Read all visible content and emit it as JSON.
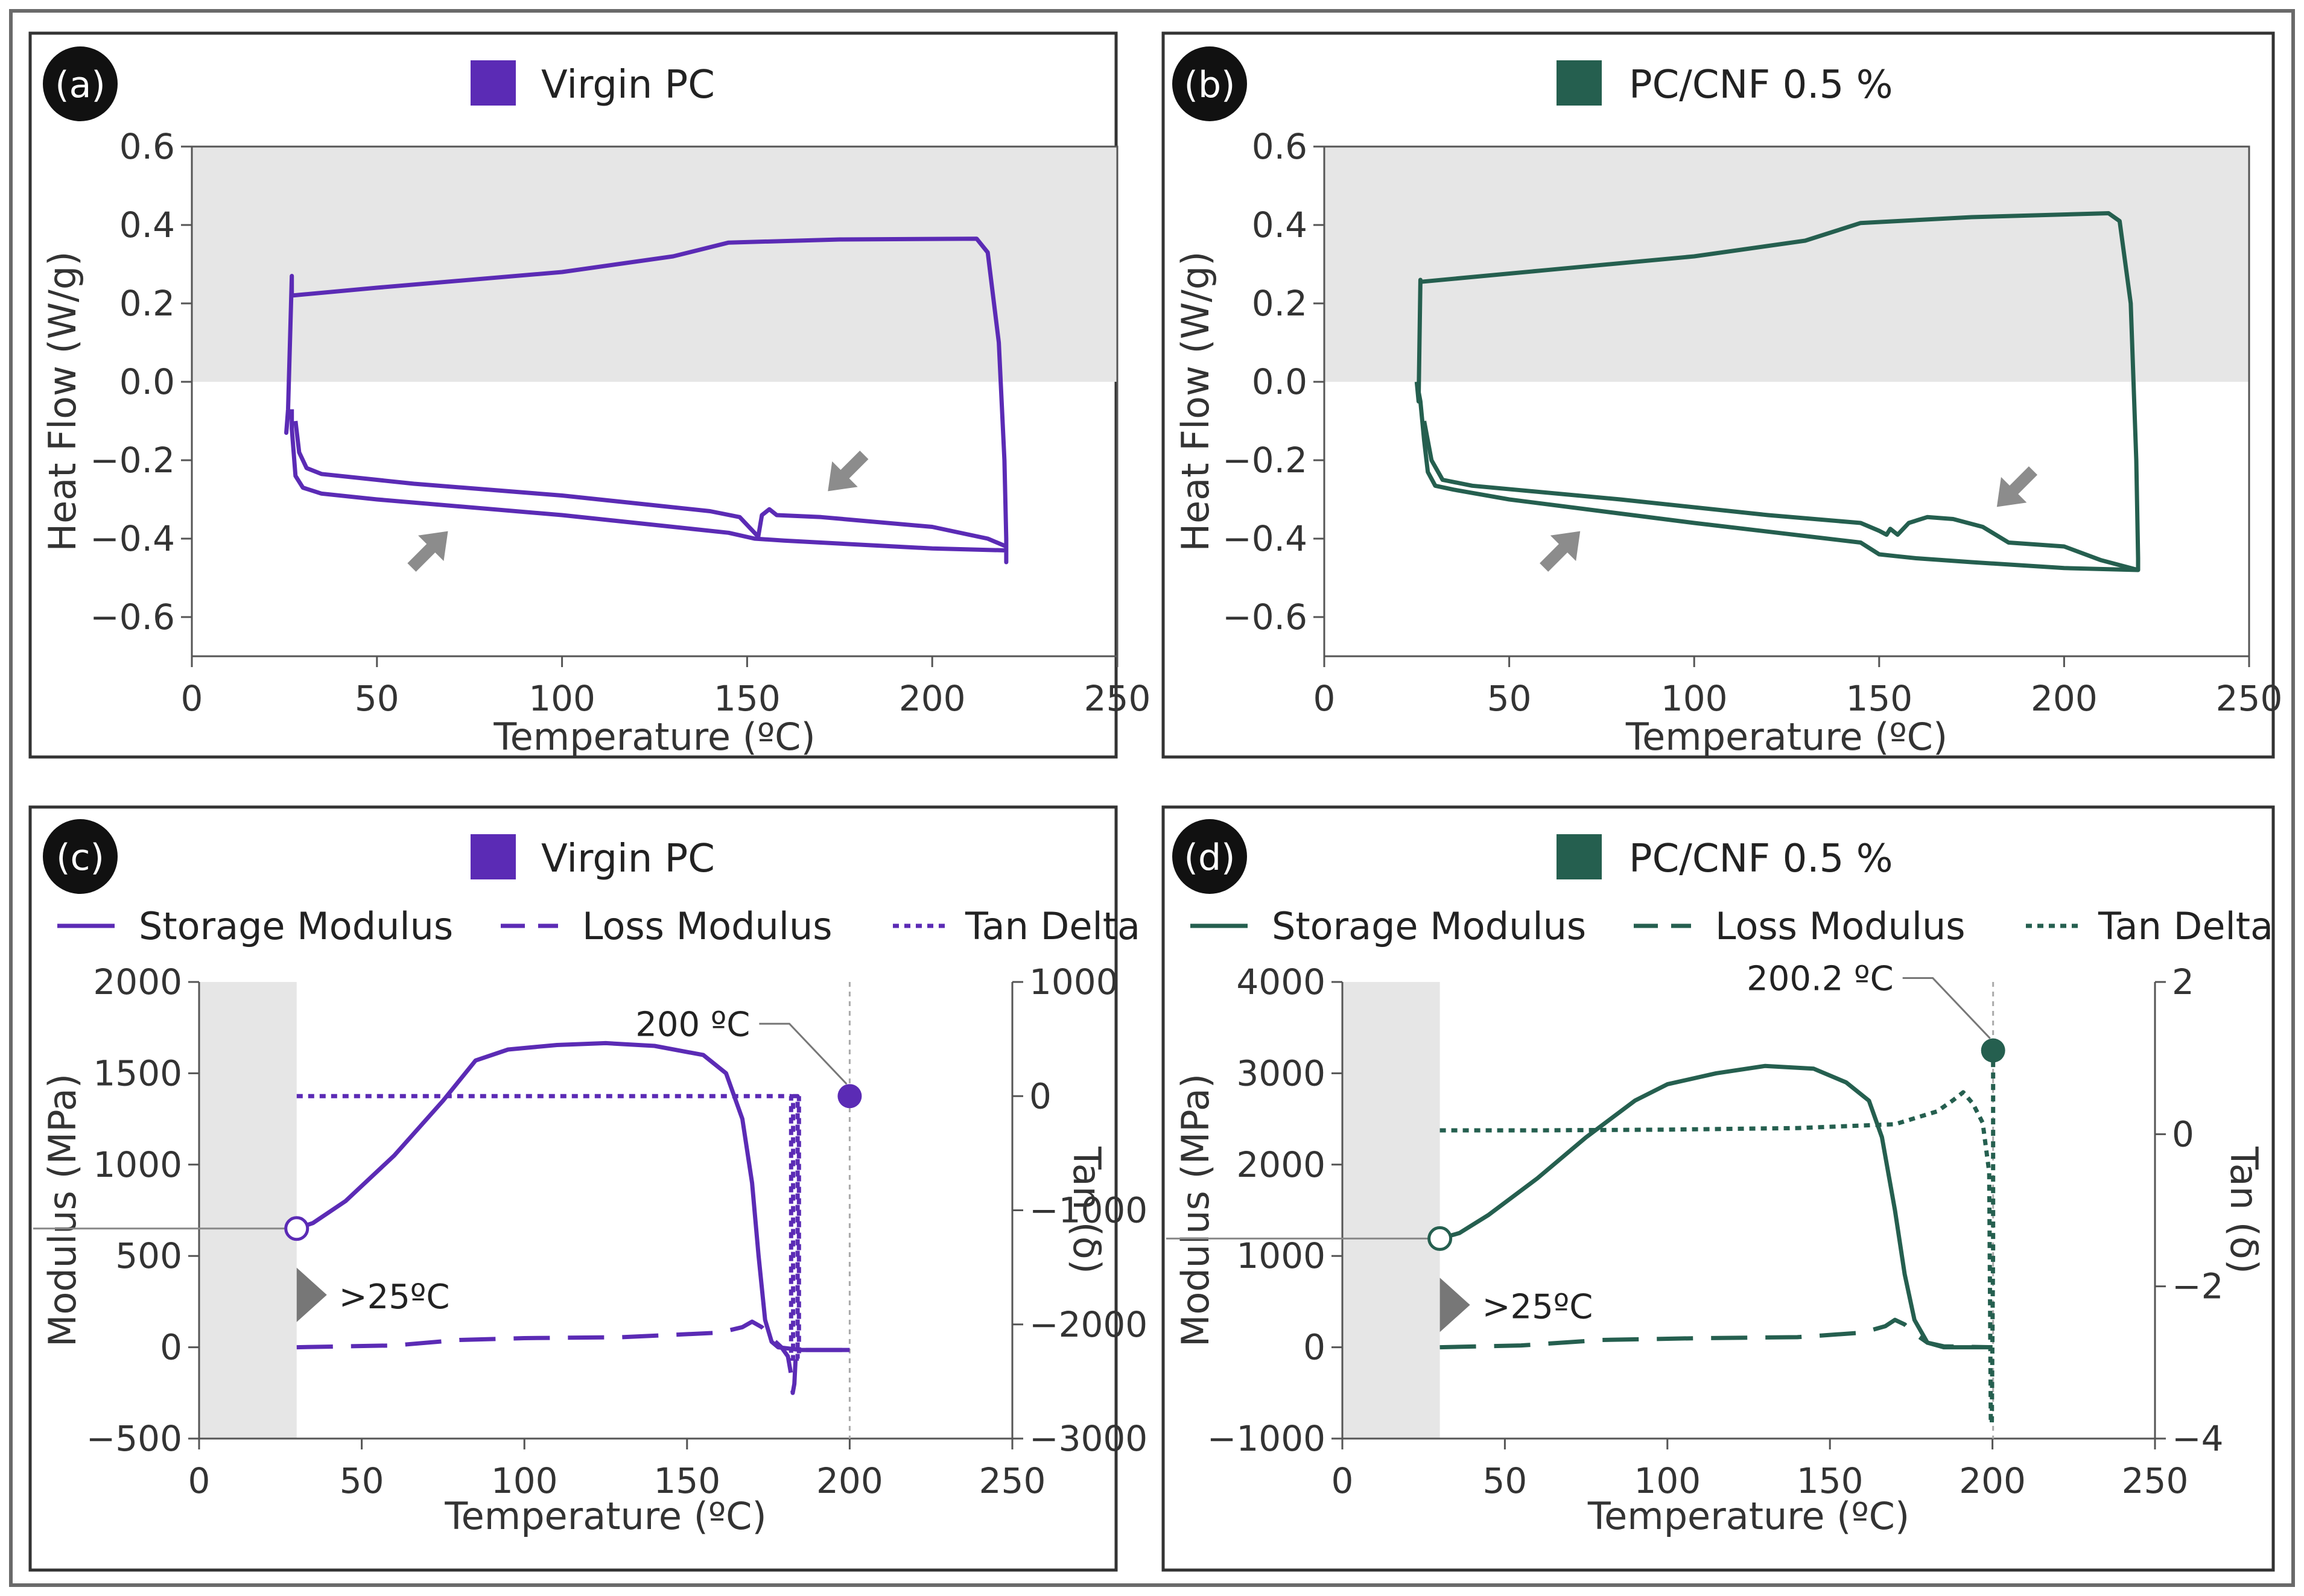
{
  "colors": {
    "purple": "#5b2bb5",
    "green": "#255f4f",
    "arrow": "#8c8c8c",
    "shade": "#e6e6e6",
    "frame": "#6a6a6a"
  },
  "chart_data": [
    {
      "panel": "a",
      "panel_label": "(a)",
      "type": "line",
      "legend": "Virgin PC",
      "color_key": "purple",
      "xlabel": "Temperature (ºC)",
      "ylabel": "Heat Flow (W/g)",
      "xlim": [
        0,
        250
      ],
      "ylim": [
        -0.7,
        0.6
      ],
      "xticks": [
        0,
        50,
        100,
        150,
        200,
        250
      ],
      "yticks": [
        -0.6,
        -0.4,
        -0.2,
        0.0,
        0.2,
        0.4,
        0.6
      ],
      "xtick_labels": [
        "0",
        "50",
        "100",
        "150",
        "200",
        "250"
      ],
      "ytick_labels": [
        "−0.6",
        "−0.4",
        "−0.2",
        "0.0",
        "0.2",
        "0.4",
        "0.6"
      ],
      "shaded_y": [
        0,
        0.6
      ],
      "curves": [
        {
          "name": "loop",
          "points": [
            [
              26,
              -0.08
            ],
            [
              25.5,
              -0.13
            ],
            [
              26,
              -0.07
            ],
            [
              27,
              0.27
            ],
            [
              27,
              0.22
            ],
            [
              50,
              0.24
            ],
            [
              100,
              0.28
            ],
            [
              130,
              0.32
            ],
            [
              145,
              0.355
            ],
            [
              175,
              0.363
            ],
            [
              212,
              0.365
            ],
            [
              215,
              0.33
            ],
            [
              218,
              0.1
            ],
            [
              219.5,
              -0.2
            ],
            [
              220,
              -0.4
            ],
            [
              220,
              -0.46
            ],
            [
              220,
              -0.43
            ],
            [
              200,
              -0.425
            ],
            [
              160,
              -0.405
            ],
            [
              152,
              -0.4
            ],
            [
              145,
              -0.385
            ],
            [
              100,
              -0.34
            ],
            [
              50,
              -0.3
            ],
            [
              35,
              -0.285
            ],
            [
              30,
              -0.27
            ],
            [
              28,
              -0.24
            ],
            [
              27,
              -0.12
            ],
            [
              27,
              -0.07
            ]
          ]
        },
        {
          "name": "inner",
          "points": [
            [
              28,
              -0.1
            ],
            [
              29,
              -0.18
            ],
            [
              31,
              -0.22
            ],
            [
              35,
              -0.235
            ],
            [
              60,
              -0.26
            ],
            [
              100,
              -0.29
            ],
            [
              140,
              -0.33
            ],
            [
              148,
              -0.345
            ],
            [
              153,
              -0.395
            ],
            [
              154,
              -0.34
            ],
            [
              156,
              -0.325
            ],
            [
              158,
              -0.34
            ],
            [
              170,
              -0.345
            ],
            [
              200,
              -0.37
            ],
            [
              215,
              -0.4
            ],
            [
              220,
              -0.42
            ]
          ]
        }
      ],
      "arrows": [
        {
          "x": 64,
          "y": -0.43,
          "dir": "up-right"
        },
        {
          "x": 177,
          "y": -0.23,
          "dir": "down-left"
        }
      ]
    },
    {
      "panel": "b",
      "panel_label": "(b)",
      "type": "line",
      "legend": "PC/CNF 0.5 %",
      "color_key": "green",
      "xlabel": "Temperature (ºC)",
      "ylabel": "Heat Flow (W/g)",
      "xlim": [
        0,
        250
      ],
      "ylim": [
        -0.7,
        0.6
      ],
      "xticks": [
        0,
        50,
        100,
        150,
        200,
        250
      ],
      "yticks": [
        -0.6,
        -0.4,
        -0.2,
        0.0,
        0.2,
        0.4,
        0.6
      ],
      "xtick_labels": [
        "0",
        "50",
        "100",
        "150",
        "200",
        "250"
      ],
      "ytick_labels": [
        "−0.6",
        "−0.4",
        "−0.2",
        "0.0",
        "0.2",
        "0.4",
        "0.6"
      ],
      "shaded_y": [
        0,
        0.6
      ],
      "curves": [
        {
          "name": "loop",
          "points": [
            [
              25,
              0.0
            ],
            [
              25.5,
              -0.05
            ],
            [
              26,
              0.26
            ],
            [
              26,
              0.255
            ],
            [
              60,
              0.285
            ],
            [
              100,
              0.32
            ],
            [
              130,
              0.36
            ],
            [
              145,
              0.405
            ],
            [
              175,
              0.42
            ],
            [
              212,
              0.43
            ],
            [
              215,
              0.41
            ],
            [
              218,
              0.2
            ],
            [
              219.5,
              -0.2
            ],
            [
              220,
              -0.45
            ],
            [
              220,
              -0.48
            ],
            [
              200,
              -0.475
            ],
            [
              175,
              -0.46
            ],
            [
              160,
              -0.45
            ],
            [
              155,
              -0.445
            ],
            [
              150,
              -0.44
            ],
            [
              145,
              -0.41
            ],
            [
              100,
              -0.36
            ],
            [
              50,
              -0.3
            ],
            [
              35,
              -0.275
            ],
            [
              30,
              -0.265
            ],
            [
              28,
              -0.23
            ],
            [
              27,
              -0.15
            ],
            [
              26,
              -0.05
            ],
            [
              25,
              0.0
            ]
          ]
        },
        {
          "name": "inner",
          "points": [
            [
              27,
              -0.1
            ],
            [
              29,
              -0.2
            ],
            [
              32,
              -0.25
            ],
            [
              40,
              -0.265
            ],
            [
              80,
              -0.3
            ],
            [
              120,
              -0.34
            ],
            [
              145,
              -0.36
            ],
            [
              150,
              -0.38
            ],
            [
              152,
              -0.39
            ],
            [
              153,
              -0.375
            ],
            [
              155,
              -0.39
            ],
            [
              158,
              -0.36
            ],
            [
              163,
              -0.345
            ],
            [
              170,
              -0.35
            ],
            [
              178,
              -0.37
            ],
            [
              185,
              -0.41
            ],
            [
              200,
              -0.42
            ],
            [
              210,
              -0.455
            ],
            [
              220,
              -0.48
            ]
          ]
        }
      ],
      "arrows": [
        {
          "x": 64,
          "y": -0.43,
          "dir": "up-right"
        },
        {
          "x": 187,
          "y": -0.27,
          "dir": "down-left"
        }
      ]
    },
    {
      "panel": "c",
      "panel_label": "(c)",
      "type": "line",
      "legend": "Virgin PC",
      "color_key": "purple",
      "series_legend": [
        "Storage Modulus",
        "Loss Modulus",
        "Tan Delta"
      ],
      "xlabel": "Temperature (ºC)",
      "ylabel": "Modulus (MPa)",
      "y2label": "Tan (δ)",
      "xlim": [
        0,
        250
      ],
      "ylim": [
        -500,
        2000
      ],
      "y2lim": [
        -3000,
        1000
      ],
      "xticks": [
        0,
        50,
        100,
        150,
        200,
        250
      ],
      "yticks": [
        -500,
        0,
        500,
        1000,
        1500,
        2000
      ],
      "y2ticks": [
        -3000,
        -2000,
        -1000,
        0,
        1000
      ],
      "xtick_labels": [
        "0",
        "50",
        "100",
        "150",
        "200",
        "250"
      ],
      "ytick_labels": [
        "−500",
        "0",
        "500",
        "1000",
        "1500",
        "2000"
      ],
      "y2tick_labels": [
        "−3000",
        "−2000",
        "−1000",
        "0",
        "1000"
      ],
      "shaded_x": [
        0,
        30
      ],
      "start_marker": {
        "x": 30,
        "y": 650,
        "label": ">25ºC"
      },
      "peak_marker": {
        "x": 200,
        "y2": 0,
        "label": "200 ºC"
      },
      "series": [
        {
          "name": "Storage Modulus",
          "style": "solid",
          "axis": "y",
          "points": [
            [
              30,
              650
            ],
            [
              35,
              680
            ],
            [
              45,
              800
            ],
            [
              60,
              1050
            ],
            [
              75,
              1350
            ],
            [
              85,
              1570
            ],
            [
              95,
              1630
            ],
            [
              110,
              1655
            ],
            [
              125,
              1665
            ],
            [
              140,
              1650
            ],
            [
              155,
              1600
            ],
            [
              162,
              1500
            ],
            [
              167,
              1250
            ],
            [
              170,
              900
            ],
            [
              172,
              500
            ],
            [
              174,
              150
            ],
            [
              176,
              30
            ],
            [
              178,
              0
            ],
            [
              185,
              -15
            ],
            [
              200,
              -15
            ]
          ]
        },
        {
          "name": "Loss Modulus",
          "style": "dashed",
          "axis": "y",
          "points": [
            [
              30,
              0
            ],
            [
              60,
              10
            ],
            [
              80,
              40
            ],
            [
              100,
              50
            ],
            [
              130,
              55
            ],
            [
              160,
              80
            ],
            [
              167,
              110
            ],
            [
              170,
              140
            ],
            [
              173,
              110
            ],
            [
              176,
              50
            ],
            [
              179,
              0
            ],
            [
              181,
              -50
            ],
            [
              182,
              -150
            ],
            [
              182.5,
              -250
            ],
            [
              183,
              -200
            ],
            [
              183.5,
              -20
            ],
            [
              186,
              -15
            ],
            [
              200,
              -15
            ]
          ]
        },
        {
          "name": "Tan Delta",
          "style": "dotted",
          "axis": "y2",
          "points": [
            [
              30,
              0
            ],
            [
              100,
              0
            ],
            [
              170,
              0
            ],
            [
              180,
              0
            ],
            [
              182,
              0
            ],
            [
              182,
              -2300
            ],
            [
              182.6,
              -2300
            ],
            [
              182.6,
              0
            ],
            [
              184,
              0
            ],
            [
              184,
              -2300
            ],
            [
              184.4,
              -2300
            ],
            [
              184.4,
              0
            ]
          ]
        }
      ]
    },
    {
      "panel": "d",
      "panel_label": "(d)",
      "type": "line",
      "legend": "PC/CNF 0.5 %",
      "color_key": "green",
      "series_legend": [
        "Storage Modulus",
        "Loss Modulus",
        "Tan Delta"
      ],
      "xlabel": "Temperature (ºC)",
      "ylabel": "Modulus (MPa)",
      "y2label": "Tan (δ)",
      "xlim": [
        0,
        250
      ],
      "ylim": [
        -1000,
        4000
      ],
      "y2lim": [
        -4,
        2
      ],
      "xticks": [
        0,
        50,
        100,
        150,
        200,
        250
      ],
      "yticks": [
        -1000,
        0,
        1000,
        2000,
        3000,
        4000
      ],
      "y2ticks": [
        -4,
        -2,
        0,
        2
      ],
      "xtick_labels": [
        "0",
        "50",
        "100",
        "150",
        "200",
        "250"
      ],
      "ytick_labels": [
        "−1000",
        "0",
        "1000",
        "2000",
        "3000",
        "4000"
      ],
      "y2tick_labels": [
        "−4",
        "−2",
        "0",
        "2"
      ],
      "shaded_x": [
        0,
        30
      ],
      "start_marker": {
        "x": 30,
        "y": 1190,
        "label": ">25ºC"
      },
      "peak_marker": {
        "x": 200.2,
        "y2": 1.1,
        "label": "200.2 ºC"
      },
      "series": [
        {
          "name": "Storage Modulus",
          "style": "solid",
          "axis": "y",
          "points": [
            [
              30,
              1190
            ],
            [
              36,
              1250
            ],
            [
              45,
              1450
            ],
            [
              60,
              1850
            ],
            [
              75,
              2300
            ],
            [
              90,
              2700
            ],
            [
              100,
              2880
            ],
            [
              115,
              3000
            ],
            [
              130,
              3080
            ],
            [
              145,
              3050
            ],
            [
              155,
              2900
            ],
            [
              162,
              2700
            ],
            [
              166,
              2300
            ],
            [
              170,
              1500
            ],
            [
              173,
              800
            ],
            [
              176,
              300
            ],
            [
              180,
              50
            ],
            [
              185,
              0
            ],
            [
              200,
              0
            ]
          ]
        },
        {
          "name": "Loss Modulus",
          "style": "dashed",
          "axis": "y",
          "points": [
            [
              30,
              0
            ],
            [
              55,
              20
            ],
            [
              80,
              80
            ],
            [
              110,
              100
            ],
            [
              140,
              110
            ],
            [
              160,
              160
            ],
            [
              167,
              230
            ],
            [
              170,
              300
            ],
            [
              173,
              250
            ],
            [
              176,
              150
            ],
            [
              180,
              50
            ],
            [
              185,
              10
            ],
            [
              200,
              0
            ]
          ]
        },
        {
          "name": "Tan Delta",
          "style": "dotted",
          "axis": "y2",
          "points": [
            [
              30,
              0.05
            ],
            [
              60,
              0.05
            ],
            [
              100,
              0.06
            ],
            [
              140,
              0.08
            ],
            [
              170,
              0.13
            ],
            [
              183,
              0.3
            ],
            [
              188,
              0.45
            ],
            [
              191,
              0.55
            ],
            [
              194,
              0.4
            ],
            [
              197,
              0.15
            ],
            [
              199,
              -0.5
            ],
            [
              199.5,
              -3.8
            ],
            [
              199.8,
              -3.8
            ],
            [
              200.2,
              -1.5
            ],
            [
              200.2,
              1.1
            ]
          ]
        }
      ]
    }
  ]
}
